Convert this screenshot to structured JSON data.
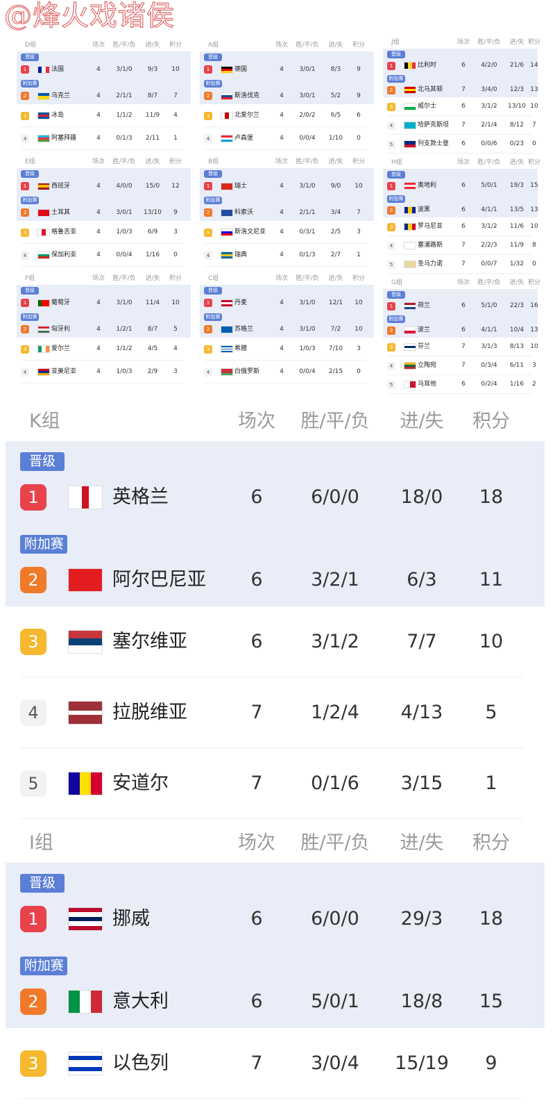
{
  "watermark": "@烽火戏诸侯",
  "headers": {
    "games": "场次",
    "wdl": "胜/平/负",
    "goals": "进/失",
    "points": "积分"
  },
  "tags": {
    "qualified": "晋级",
    "playoff": "附加赛"
  },
  "colors": {
    "rank1": "#e8424a",
    "rank2": "#f07a2a",
    "rank3": "#f5b82e",
    "rank_other_bg": "#f2f2f2",
    "tag": "#5b7fd6",
    "highlight_row": "#e9edf8"
  },
  "groups": [
    {
      "id": "D",
      "name": "D组",
      "teams": [
        {
          "rank": "1",
          "tag": "qualified",
          "name": "法国",
          "games": "4",
          "wdl": "3/1/0",
          "goals": "9/3",
          "points": "10",
          "flag": {
            "dir": "v",
            "colors": [
              "#002395",
              "#ffffff",
              "#ed2939"
            ]
          }
        },
        {
          "rank": "2",
          "tag": "playoff",
          "name": "乌克兰",
          "games": "4",
          "wdl": "2/1/1",
          "goals": "8/7",
          "points": "7",
          "flag": {
            "dir": "h",
            "colors": [
              "#0057b7",
              "#ffd700"
            ]
          }
        },
        {
          "rank": "3",
          "name": "冰岛",
          "games": "4",
          "wdl": "1/1/2",
          "goals": "11/9",
          "points": "4",
          "flag": {
            "dir": "h",
            "colors": [
              "#02529c",
              "#dc1e35",
              "#02529c"
            ]
          }
        },
        {
          "rank": "4",
          "name": "阿塞拜疆",
          "games": "4",
          "wdl": "0/1/3",
          "goals": "2/11",
          "points": "1",
          "flag": {
            "dir": "h",
            "colors": [
              "#00b5e2",
              "#ef3340",
              "#509e2f"
            ]
          }
        }
      ]
    },
    {
      "id": "E",
      "name": "E组",
      "teams": [
        {
          "rank": "1",
          "tag": "qualified",
          "name": "西班牙",
          "games": "4",
          "wdl": "4/0/0",
          "goals": "15/0",
          "points": "12",
          "flag": {
            "dir": "h",
            "colors": [
              "#aa151b",
              "#f1bf00",
              "#f1bf00",
              "#aa151b"
            ]
          }
        },
        {
          "rank": "2",
          "tag": "playoff",
          "name": "土耳其",
          "games": "4",
          "wdl": "3/0/1",
          "goals": "13/10",
          "points": "9",
          "flag": {
            "dir": "h",
            "colors": [
              "#e30a17"
            ]
          }
        },
        {
          "rank": "3",
          "name": "格鲁吉亚",
          "games": "4",
          "wdl": "1/0/3",
          "goals": "6/9",
          "points": "3",
          "flag": {
            "dir": "v",
            "colors": [
              "#ffffff",
              "#e8112d",
              "#ffffff"
            ]
          }
        },
        {
          "rank": "4",
          "name": "保加利亚",
          "games": "4",
          "wdl": "0/0/4",
          "goals": "1/16",
          "points": "0",
          "flag": {
            "dir": "h",
            "colors": [
              "#ffffff",
              "#00966e",
              "#d62612"
            ]
          }
        }
      ]
    },
    {
      "id": "F",
      "name": "F组",
      "teams": [
        {
          "rank": "1",
          "tag": "qualified",
          "name": "葡萄牙",
          "games": "4",
          "wdl": "3/1/0",
          "goals": "11/4",
          "points": "10",
          "flag": {
            "dir": "v",
            "colors": [
              "#006600",
              "#ff0000",
              "#ff0000"
            ]
          }
        },
        {
          "rank": "2",
          "tag": "playoff",
          "name": "匈牙利",
          "games": "4",
          "wdl": "1/2/1",
          "goals": "8/7",
          "points": "5",
          "flag": {
            "dir": "h",
            "colors": [
              "#ce2939",
              "#ffffff",
              "#477050"
            ]
          }
        },
        {
          "rank": "3",
          "name": "爱尔兰",
          "games": "4",
          "wdl": "1/1/2",
          "goals": "4/5",
          "points": "4",
          "flag": {
            "dir": "v",
            "colors": [
              "#169b62",
              "#ffffff",
              "#ff883e"
            ]
          }
        },
        {
          "rank": "4",
          "name": "亚美尼亚",
          "games": "4",
          "wdl": "1/0/3",
          "goals": "2/9",
          "points": "3",
          "flag": {
            "dir": "h",
            "colors": [
              "#d90012",
              "#0033a0",
              "#f2a800"
            ]
          }
        }
      ]
    },
    {
      "id": "A",
      "name": "A组",
      "teams": [
        {
          "rank": "1",
          "tag": "qualified",
          "name": "德国",
          "games": "4",
          "wdl": "3/0/1",
          "goals": "8/3",
          "points": "9",
          "flag": {
            "dir": "h",
            "colors": [
              "#000000",
              "#dd0000",
              "#ffce00"
            ]
          }
        },
        {
          "rank": "2",
          "tag": "playoff",
          "name": "斯洛伐克",
          "games": "4",
          "wdl": "3/0/1",
          "goals": "5/2",
          "points": "9",
          "flag": {
            "dir": "h",
            "colors": [
              "#ffffff",
              "#0b4ea2",
              "#ee1c25"
            ]
          }
        },
        {
          "rank": "3",
          "name": "北爱尔兰",
          "games": "4",
          "wdl": "2/0/2",
          "goals": "6/5",
          "points": "6",
          "flag": {
            "dir": "v",
            "colors": [
              "#ffffff",
              "#cc0000",
              "#ffffff"
            ]
          }
        },
        {
          "rank": "4",
          "name": "卢森堡",
          "games": "4",
          "wdl": "0/0/4",
          "goals": "1/10",
          "points": "0",
          "flag": {
            "dir": "h",
            "colors": [
              "#ed2939",
              "#ffffff",
              "#00a1de"
            ]
          }
        }
      ]
    },
    {
      "id": "B",
      "name": "B组",
      "teams": [
        {
          "rank": "1",
          "tag": "qualified",
          "name": "瑞士",
          "games": "4",
          "wdl": "3/1/0",
          "goals": "9/0",
          "points": "10",
          "flag": {
            "dir": "h",
            "colors": [
              "#d52b1e"
            ]
          }
        },
        {
          "rank": "2",
          "tag": "playoff",
          "name": "科索沃",
          "games": "4",
          "wdl": "2/1/1",
          "goals": "3/4",
          "points": "7",
          "flag": {
            "dir": "h",
            "colors": [
              "#244aa5"
            ]
          }
        },
        {
          "rank": "3",
          "name": "斯洛文尼亚",
          "games": "4",
          "wdl": "0/3/1",
          "goals": "2/5",
          "points": "3",
          "flag": {
            "dir": "h",
            "colors": [
              "#ffffff",
              "#0000ff",
              "#ff0000"
            ]
          }
        },
        {
          "rank": "4",
          "name": "瑞典",
          "games": "4",
          "wdl": "0/1/3",
          "goals": "2/7",
          "points": "1",
          "flag": {
            "dir": "h",
            "colors": [
              "#006aa7",
              "#fecc00",
              "#006aa7"
            ]
          }
        }
      ]
    },
    {
      "id": "C",
      "name": "C组",
      "teams": [
        {
          "rank": "1",
          "tag": "qualified",
          "name": "丹麦",
          "games": "4",
          "wdl": "3/1/0",
          "goals": "12/1",
          "points": "10",
          "flag": {
            "dir": "h",
            "colors": [
              "#c60c30",
              "#ffffff",
              "#c60c30"
            ]
          }
        },
        {
          "rank": "2",
          "tag": "playoff",
          "name": "苏格兰",
          "games": "4",
          "wdl": "3/1/0",
          "goals": "7/2",
          "points": "10",
          "flag": {
            "dir": "h",
            "colors": [
              "#005eb8"
            ]
          }
        },
        {
          "rank": "3",
          "name": "希腊",
          "games": "4",
          "wdl": "1/0/3",
          "goals": "7/10",
          "points": "3",
          "flag": {
            "dir": "h",
            "colors": [
              "#0d5eaf",
              "#ffffff",
              "#0d5eaf",
              "#ffffff",
              "#0d5eaf"
            ]
          }
        },
        {
          "rank": "4",
          "name": "白俄罗斯",
          "games": "4",
          "wdl": "0/0/4",
          "goals": "2/15",
          "points": "0",
          "flag": {
            "dir": "h",
            "colors": [
              "#c8313e",
              "#c8313e",
              "#4aa657"
            ]
          }
        }
      ]
    },
    {
      "id": "J",
      "name": "J组",
      "teams": [
        {
          "rank": "1",
          "tag": "qualified",
          "name": "比利时",
          "games": "6",
          "wdl": "4/2/0",
          "goals": "21/6",
          "points": "14",
          "flag": {
            "dir": "v",
            "colors": [
              "#000000",
              "#fdda24",
              "#ef3340"
            ]
          }
        },
        {
          "rank": "2",
          "tag": "playoff",
          "name": "北马其顿",
          "games": "7",
          "wdl": "3/4/0",
          "goals": "12/3",
          "points": "13",
          "flag": {
            "dir": "h",
            "colors": [
              "#d20000",
              "#ffe600",
              "#d20000"
            ]
          }
        },
        {
          "rank": "3",
          "name": "威尔士",
          "games": "6",
          "wdl": "3/1/2",
          "goals": "13/10",
          "points": "10",
          "flag": {
            "dir": "h",
            "colors": [
              "#ffffff",
              "#00b140"
            ]
          }
        },
        {
          "rank": "4",
          "name": "哈萨克斯坦",
          "games": "7",
          "wdl": "2/1/4",
          "goals": "8/12",
          "points": "7",
          "flag": {
            "dir": "h",
            "colors": [
              "#00afca"
            ]
          }
        },
        {
          "rank": "5",
          "name": "列支敦士登",
          "games": "6",
          "wdl": "0/0/6",
          "goals": "0/23",
          "points": "0",
          "flag": {
            "dir": "h",
            "colors": [
              "#002b7f",
              "#ce1126"
            ]
          }
        }
      ]
    },
    {
      "id": "H",
      "name": "H组",
      "teams": [
        {
          "rank": "1",
          "tag": "qualified",
          "name": "奥地利",
          "games": "6",
          "wdl": "5/0/1",
          "goals": "19/3",
          "points": "15",
          "flag": {
            "dir": "h",
            "colors": [
              "#ed2939",
              "#ffffff",
              "#ed2939"
            ]
          }
        },
        {
          "rank": "2",
          "tag": "playoff",
          "name": "波黑",
          "games": "6",
          "wdl": "4/1/1",
          "goals": "13/5",
          "points": "13",
          "flag": {
            "dir": "v",
            "colors": [
              "#002395",
              "#fecb00",
              "#002395"
            ]
          }
        },
        {
          "rank": "3",
          "name": "罗马尼亚",
          "games": "6",
          "wdl": "3/1/2",
          "goals": "11/6",
          "points": "10",
          "flag": {
            "dir": "v",
            "colors": [
              "#002b7f",
              "#fcd116",
              "#ce1126"
            ]
          }
        },
        {
          "rank": "4",
          "name": "塞浦路斯",
          "games": "7",
          "wdl": "2/2/3",
          "goals": "11/9",
          "points": "8",
          "flag": {
            "dir": "h",
            "colors": [
              "#ffffff"
            ]
          }
        },
        {
          "rank": "5",
          "name": "圣马力诺",
          "games": "7",
          "wdl": "0/0/7",
          "goals": "1/32",
          "points": "0",
          "flag": {
            "dir": "h",
            "colors": [
              "#e8d9a0"
            ]
          }
        }
      ]
    },
    {
      "id": "G",
      "name": "G组",
      "teams": [
        {
          "rank": "1",
          "tag": "qualified",
          "name": "荷兰",
          "games": "6",
          "wdl": "5/1/0",
          "goals": "22/3",
          "points": "16",
          "flag": {
            "dir": "h",
            "colors": [
              "#ae1c28",
              "#ffffff",
              "#21468b"
            ]
          }
        },
        {
          "rank": "2",
          "tag": "playoff",
          "name": "波兰",
          "games": "6",
          "wdl": "4/1/1",
          "goals": "10/4",
          "points": "13",
          "flag": {
            "dir": "h",
            "colors": [
              "#ffffff",
              "#dc143c"
            ]
          }
        },
        {
          "rank": "3",
          "name": "芬兰",
          "games": "7",
          "wdl": "3/1/3",
          "goals": "8/13",
          "points": "10",
          "flag": {
            "dir": "h",
            "colors": [
              "#ffffff",
              "#002f6c",
              "#ffffff"
            ]
          }
        },
        {
          "rank": "4",
          "name": "立陶宛",
          "games": "7",
          "wdl": "0/3/4",
          "goals": "6/11",
          "points": "3",
          "flag": {
            "dir": "h",
            "colors": [
              "#fdb913",
              "#006a44",
              "#c1272d"
            ]
          }
        },
        {
          "rank": "5",
          "name": "马耳他",
          "games": "6",
          "wdl": "0/2/4",
          "goals": "1/16",
          "points": "2",
          "flag": {
            "dir": "v",
            "colors": [
              "#ffffff",
              "#cf142b"
            ]
          }
        }
      ]
    },
    {
      "id": "K",
      "name": "K组",
      "teams": [
        {
          "rank": "1",
          "tag": "qualified",
          "name": "英格兰",
          "games": "6",
          "wdl": "6/0/0",
          "goals": "18/0",
          "points": "18",
          "flag": {
            "dir": "v",
            "colors": [
              "#ffffff",
              "#ffffff",
              "#ce1124",
              "#ffffff",
              "#ffffff"
            ]
          }
        },
        {
          "rank": "2",
          "tag": "playoff",
          "name": "阿尔巴尼亚",
          "games": "6",
          "wdl": "3/2/1",
          "goals": "6/3",
          "points": "11",
          "flag": {
            "dir": "h",
            "colors": [
              "#e41e20"
            ]
          }
        },
        {
          "rank": "3",
          "name": "塞尔维亚",
          "games": "6",
          "wdl": "3/1/2",
          "goals": "7/7",
          "points": "10",
          "flag": {
            "dir": "h",
            "colors": [
              "#c6363c",
              "#0c4076",
              "#ffffff"
            ]
          }
        },
        {
          "rank": "4",
          "name": "拉脱维亚",
          "games": "7",
          "wdl": "1/2/4",
          "goals": "4/13",
          "points": "5",
          "flag": {
            "dir": "h",
            "colors": [
              "#9e3039",
              "#9e3039",
              "#ffffff",
              "#9e3039",
              "#9e3039"
            ]
          }
        },
        {
          "rank": "5",
          "name": "安道尔",
          "games": "7",
          "wdl": "0/1/6",
          "goals": "3/15",
          "points": "1",
          "flag": {
            "dir": "v",
            "colors": [
              "#10069f",
              "#fedf00",
              "#d50032"
            ]
          }
        }
      ]
    },
    {
      "id": "I",
      "name": "I组",
      "teams": [
        {
          "rank": "1",
          "tag": "qualified",
          "name": "挪威",
          "games": "6",
          "wdl": "6/0/0",
          "goals": "29/3",
          "points": "18",
          "flag": {
            "dir": "h",
            "colors": [
              "#ba0c2f",
              "#ffffff",
              "#00205b",
              "#ffffff",
              "#ba0c2f"
            ]
          }
        },
        {
          "rank": "2",
          "tag": "playoff",
          "name": "意大利",
          "games": "6",
          "wdl": "5/0/1",
          "goals": "18/8",
          "points": "15",
          "flag": {
            "dir": "v",
            "colors": [
              "#009246",
              "#ffffff",
              "#ce2b37"
            ]
          }
        },
        {
          "rank": "3",
          "name": "以色列",
          "games": "7",
          "wdl": "3/0/4",
          "goals": "15/19",
          "points": "9",
          "flag": {
            "dir": "h",
            "colors": [
              "#ffffff",
              "#0038b8",
              "#ffffff",
              "#ffffff",
              "#0038b8",
              "#ffffff"
            ]
          }
        }
      ]
    }
  ]
}
